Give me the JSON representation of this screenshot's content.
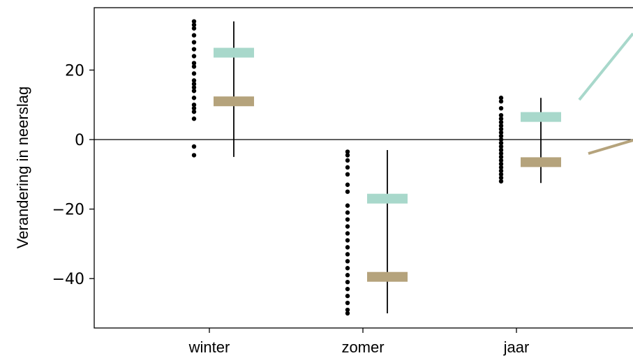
{
  "chart_data": {
    "type": "scatter",
    "ylabel": "Verandering in neerslag",
    "xlabel": "",
    "title": "",
    "categories": [
      "winter",
      "zomer",
      "jaar"
    ],
    "yticks": [
      20,
      0,
      -20,
      -40
    ],
    "ytick_labels": [
      "20",
      "0",
      "−20",
      "−40"
    ],
    "ylim": [
      -54,
      38
    ],
    "zero_line": true,
    "grid": false,
    "colors": {
      "high": "#a8d8cb",
      "low": "#b5a37c",
      "points": "#000000",
      "range_line": "#000000"
    },
    "points": [
      [
        34,
        33,
        32,
        30,
        28,
        26,
        24,
        22,
        21,
        19,
        17,
        16,
        15,
        14,
        12,
        10,
        9,
        8,
        6,
        -2,
        -4.5
      ],
      [
        -3.5,
        -4.5,
        -6,
        -8,
        -10,
        -13,
        -15,
        -19,
        -21,
        -23,
        -25,
        -27,
        -29,
        -31,
        -33,
        -35,
        -37,
        -39,
        -41,
        -43,
        -45,
        -47,
        -49,
        -50
      ],
      [
        12,
        11,
        9,
        7,
        6,
        5,
        4,
        3,
        2,
        1,
        0,
        -1,
        -2,
        -3,
        -4,
        -5,
        -6,
        -7,
        -8,
        -9,
        -10,
        -11,
        -12
      ]
    ],
    "ranges": [
      [
        -5,
        34
      ],
      [
        -50,
        -3
      ],
      [
        -12.5,
        12
      ]
    ],
    "high": [
      25,
      -17,
      6.5
    ],
    "low": [
      11,
      -39.5,
      -6.5
    ]
  }
}
